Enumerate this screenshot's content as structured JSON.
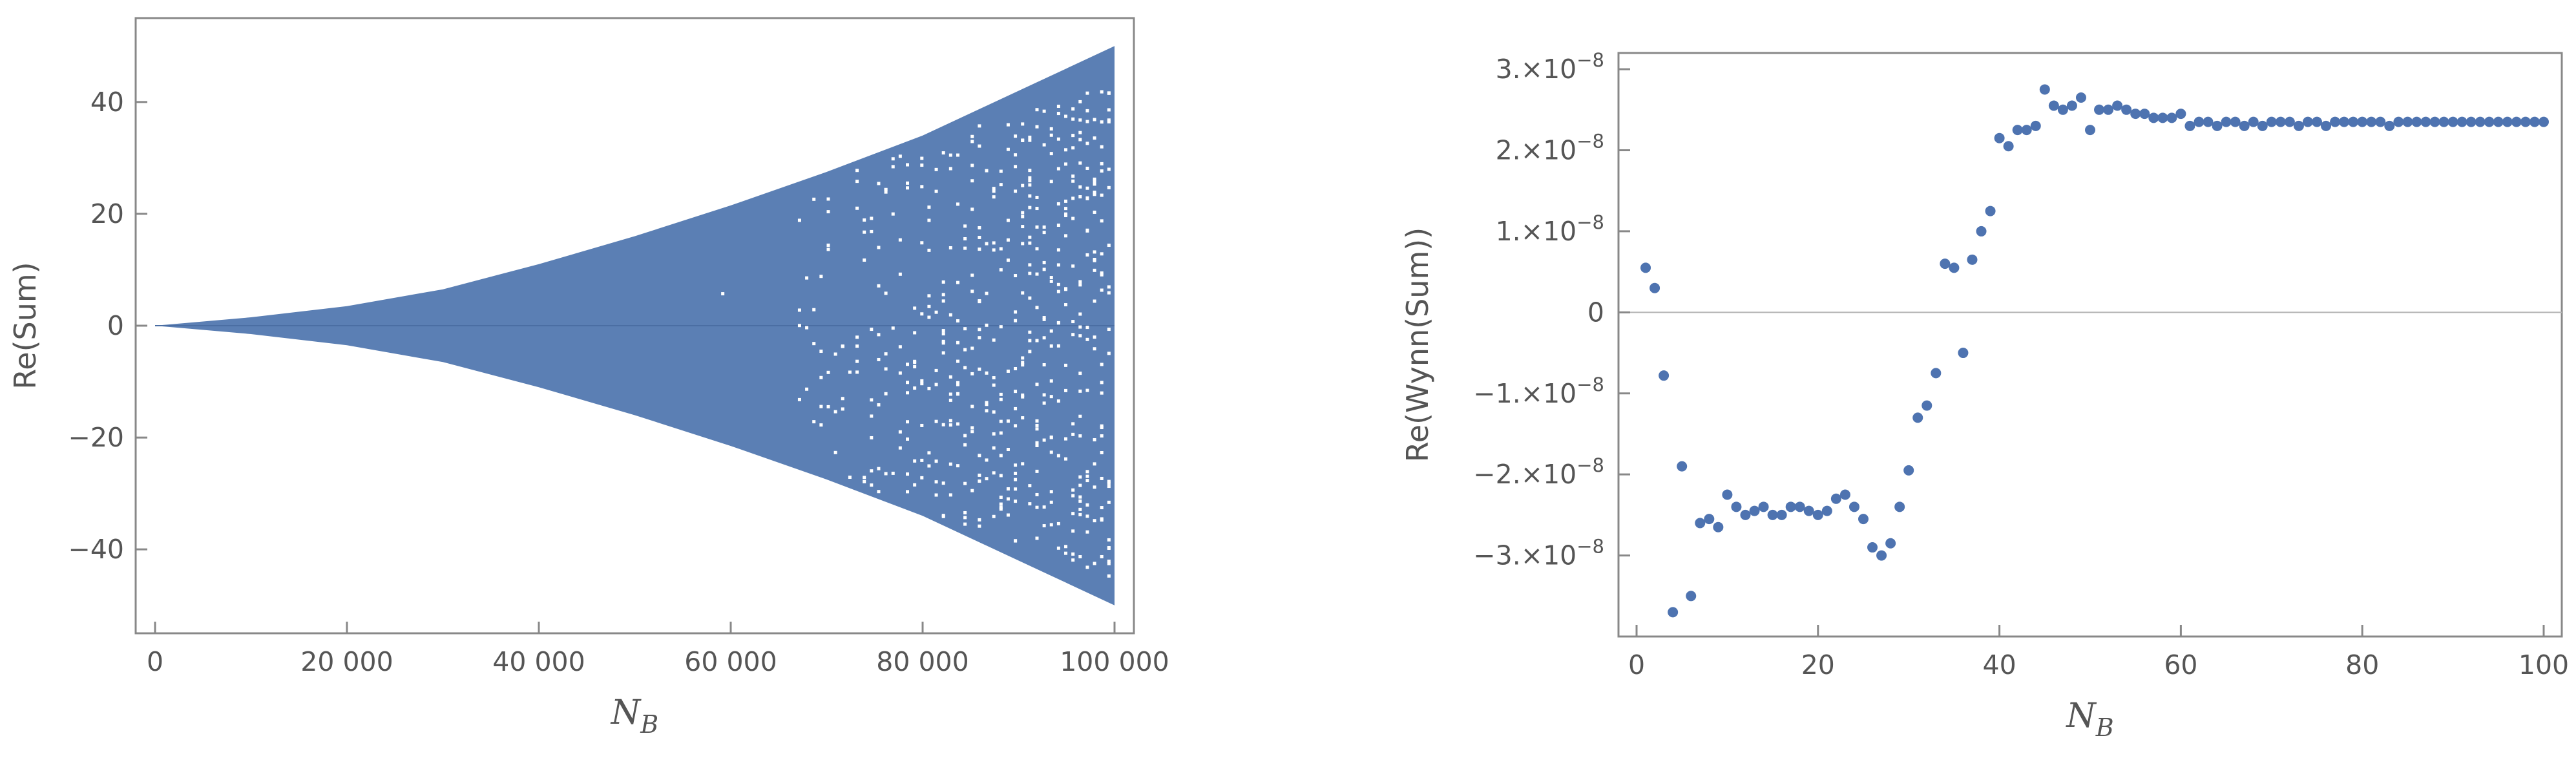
{
  "chart_data": [
    {
      "type": "scatter",
      "description_note": "",
      "xlabel": "N",
      "xlabel_sub": "B",
      "ylabel": "Re(Sum)",
      "xlim": [
        0,
        100000
      ],
      "ylim": [
        -55,
        55
      ],
      "x_ticks": [
        0,
        20000,
        40000,
        60000,
        80000,
        100000
      ],
      "x_tick_labels": [
        "0",
        "20 000",
        "40 000",
        "60 000",
        "80 000",
        "100 000"
      ],
      "y_ticks": [
        40,
        20,
        0,
        -20,
        -40
      ],
      "y_tick_labels": [
        "40",
        "20",
        "0",
        "−20",
        "−40"
      ],
      "series": [
        {
          "envelope_x": [
            0,
            10000,
            20000,
            30000,
            40000,
            50000,
            60000,
            70000,
            80000,
            90000,
            100000
          ],
          "envelope_upper": [
            0,
            1.5,
            3.5,
            6.5,
            11,
            16,
            21.5,
            27.5,
            34,
            42,
            50
          ],
          "envelope_lower": [
            0,
            -1.5,
            -3.5,
            -6.5,
            -11,
            -16,
            -21.5,
            -27.5,
            -34,
            -42,
            -50
          ]
        }
      ],
      "color": "#5b7fb4",
      "grid": false,
      "legend": "none"
    },
    {
      "type": "scatter",
      "xlabel": "N",
      "xlabel_sub": "B",
      "ylabel": "Re(Wynn(Sum))",
      "xlim": [
        0,
        100
      ],
      "ylim": [
        -4e-08,
        3.2e-08
      ],
      "x_ticks": [
        0,
        20,
        40,
        60,
        80,
        100
      ],
      "x_tick_labels": [
        "0",
        "20",
        "40",
        "60",
        "80",
        "100"
      ],
      "y_ticks": [
        3e-08,
        2e-08,
        1e-08,
        0,
        -1e-08,
        -2e-08,
        -3e-08
      ],
      "y_tick_labels": [
        "3.×10",
        "2.×10",
        "1.×10",
        "0",
        "−1.×10",
        "−2.×10",
        "−3.×10"
      ],
      "y_tick_exponents": [
        "−8",
        "−8",
        "−8",
        "",
        "−8",
        "−8",
        "−8"
      ],
      "color": "#4e73b0",
      "grid": false,
      "legend": "none",
      "series": [
        {
          "x": [
            1,
            2,
            3,
            4,
            5,
            6,
            7,
            8,
            9,
            10,
            11,
            12,
            13,
            14,
            15,
            16,
            17,
            18,
            19,
            20,
            21,
            22,
            23,
            24,
            25,
            26,
            27,
            28,
            29,
            30,
            31,
            32,
            33,
            34,
            35,
            36,
            37,
            38,
            39,
            40,
            41,
            42,
            43,
            44,
            45,
            46,
            47,
            48,
            49,
            50,
            51,
            52,
            53,
            54,
            55,
            56,
            57,
            58,
            59,
            60,
            61,
            62,
            63,
            64,
            65,
            66,
            67,
            68,
            69,
            70,
            71,
            72,
            73,
            74,
            75,
            76,
            77,
            78,
            79,
            80,
            81,
            82,
            83,
            84,
            85,
            86,
            87,
            88,
            89,
            90,
            91,
            92,
            93,
            94,
            95,
            96,
            97,
            98,
            99,
            100
          ],
          "y": [
            5.5e-09,
            3e-09,
            -7.8e-09,
            -3.7e-08,
            -1.9e-08,
            -3.5e-08,
            -2.6e-08,
            -2.55e-08,
            -2.65e-08,
            -2.25e-08,
            -2.4e-08,
            -2.5e-08,
            -2.45e-08,
            -2.4e-08,
            -2.5e-08,
            -2.5e-08,
            -2.4e-08,
            -2.4e-08,
            -2.45e-08,
            -2.5e-08,
            -2.45e-08,
            -2.3e-08,
            -2.25e-08,
            -2.4e-08,
            -2.55e-08,
            -2.9e-08,
            -3e-08,
            -2.85e-08,
            -2.4e-08,
            -1.95e-08,
            -1.3e-08,
            -1.15e-08,
            -7.5e-09,
            6e-09,
            5.5e-09,
            -5e-09,
            6.5e-09,
            1e-08,
            1.25e-08,
            2.15e-08,
            2.05e-08,
            2.25e-08,
            2.25e-08,
            2.3e-08,
            2.75e-08,
            2.55e-08,
            2.5e-08,
            2.55e-08,
            2.65e-08,
            2.25e-08,
            2.5e-08,
            2.5e-08,
            2.55e-08,
            2.5e-08,
            2.45e-08,
            2.45e-08,
            2.4e-08,
            2.4e-08,
            2.4e-08,
            2.45e-08,
            2.3e-08,
            2.35e-08,
            2.35e-08,
            2.3e-08,
            2.35e-08,
            2.35e-08,
            2.3e-08,
            2.35e-08,
            2.3e-08,
            2.35e-08,
            2.35e-08,
            2.35e-08,
            2.3e-08,
            2.35e-08,
            2.35e-08,
            2.3e-08,
            2.35e-08,
            2.35e-08,
            2.35e-08,
            2.35e-08,
            2.35e-08,
            2.35e-08,
            2.3e-08,
            2.35e-08,
            2.35e-08,
            2.35e-08,
            2.35e-08,
            2.35e-08,
            2.35e-08,
            2.35e-08,
            2.35e-08,
            2.35e-08,
            2.35e-08,
            2.35e-08,
            2.35e-08,
            2.35e-08,
            2.35e-08,
            2.35e-08,
            2.35e-08,
            2.35e-08
          ]
        }
      ]
    }
  ]
}
